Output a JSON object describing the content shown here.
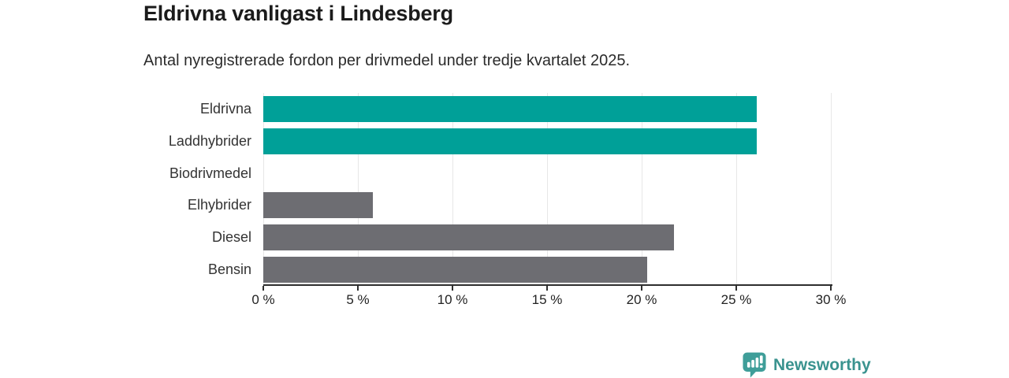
{
  "chart_data": {
    "type": "bar",
    "orientation": "horizontal",
    "title": "Eldrivna vanligast i Lindesberg",
    "subtitle": "Antal nyregistrerade fordon per drivmedel under tredje kvartalet 2025.",
    "categories": [
      "Eldrivna",
      "Laddhybrider",
      "Biodrivmedel",
      "Elhybrider",
      "Diesel",
      "Bensin"
    ],
    "values": [
      26.1,
      26.1,
      0,
      5.8,
      21.7,
      20.3
    ],
    "unit": "%",
    "bar_colors": [
      "#00a098",
      "#00a098",
      "#6d6d72",
      "#6d6d72",
      "#6d6d72",
      "#6d6d72"
    ],
    "highlight_color": "#00a098",
    "default_color": "#6d6d72",
    "xlabel": "",
    "ylabel": "",
    "xlim": [
      0,
      30
    ],
    "x_ticks": [
      0,
      5,
      10,
      15,
      20,
      25,
      30
    ],
    "x_tick_labels": [
      "0 %",
      "5 %",
      "10 %",
      "15 %",
      "20 %",
      "25 %",
      "30 %"
    ],
    "grid": true,
    "legend_position": "none"
  },
  "colors": {
    "gridline": "#e7e7e7",
    "axis": "#2e2e2e",
    "title_text": "#1b1b1b",
    "label_text": "#333333"
  },
  "footer": {
    "brand": "Newsworthy",
    "brand_color": "#3a938f",
    "logo_icon": "bar-chart-speech-bubble-icon",
    "logo_color": "#3f9e99"
  }
}
